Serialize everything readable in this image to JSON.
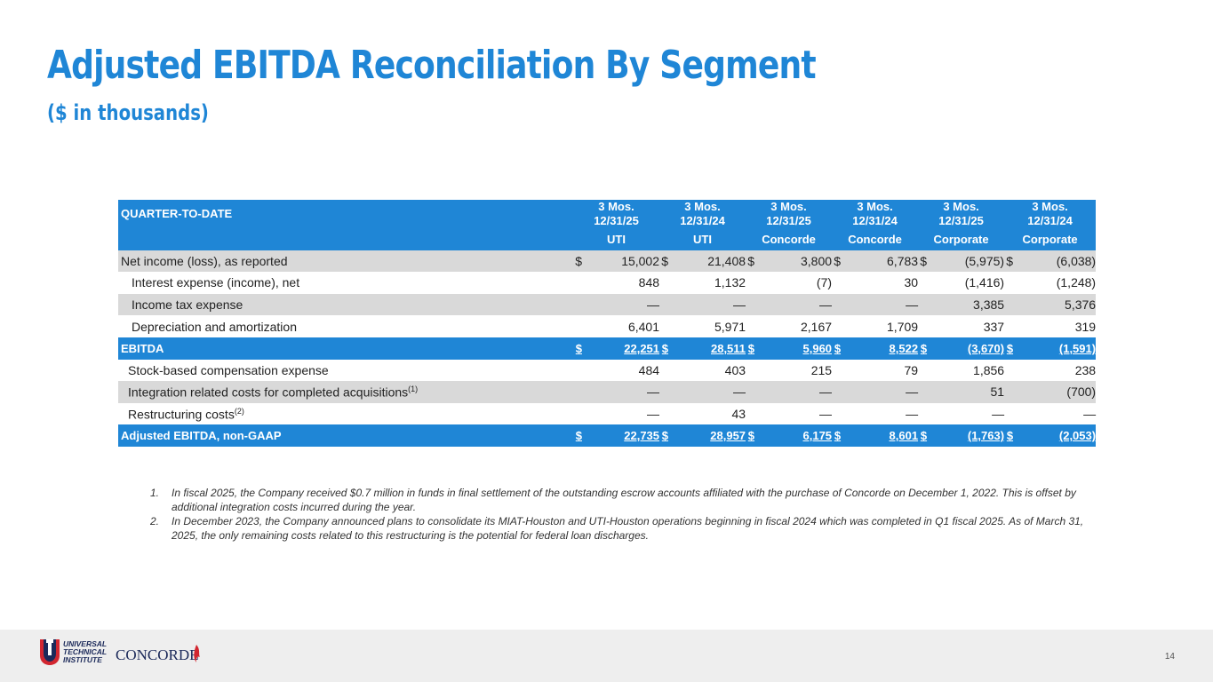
{
  "header": {
    "title": "Adjusted EBITDA Reconciliation By Segment",
    "subtitle": "($ in thousands)"
  },
  "table": {
    "corner_label": "QUARTER-TO-DATE",
    "columns": [
      {
        "period": "3 Mos.",
        "date": "12/31/25",
        "segment": "UTI"
      },
      {
        "period": "3 Mos.",
        "date": "12/31/24",
        "segment": "UTI"
      },
      {
        "period": "3 Mos.",
        "date": "12/31/25",
        "segment": "Concorde"
      },
      {
        "period": "3 Mos.",
        "date": "12/31/24",
        "segment": "Concorde"
      },
      {
        "period": "3 Mos.",
        "date": "12/31/25",
        "segment": "Corporate"
      },
      {
        "period": "3 Mos.",
        "date": "12/31/24",
        "segment": "Corporate"
      }
    ],
    "currency_symbol": "$",
    "rows": [
      {
        "label": "Net income (loss), as reported",
        "values": [
          "15,002",
          "21,408",
          "3,800",
          "6,783",
          "(5,975)",
          "(6,038)"
        ]
      },
      {
        "label": "Interest expense (income), net",
        "values": [
          "848",
          "1,132",
          "(7)",
          "30",
          "(1,416)",
          "(1,248)"
        ]
      },
      {
        "label": "Income tax expense",
        "values": [
          "—",
          "—",
          "—",
          "—",
          "3,385",
          "5,376"
        ]
      },
      {
        "label": "Depreciation and amortization",
        "values": [
          "6,401",
          "5,971",
          "2,167",
          "1,709",
          "337",
          "319"
        ]
      },
      {
        "label": "EBITDA",
        "values": [
          "22,251",
          "28,511",
          "5,960",
          "8,522",
          "(3,670)",
          "(1,591)"
        ]
      },
      {
        "label": "Stock-based compensation expense",
        "values": [
          "484",
          "403",
          "215",
          "79",
          "1,856",
          "238"
        ]
      },
      {
        "label": "Integration related costs for completed acquisitions",
        "sup": "(1)",
        "values": [
          "—",
          "—",
          "—",
          "—",
          "51",
          "(700)"
        ]
      },
      {
        "label": "Restructuring costs",
        "sup": "(2)",
        "values": [
          "—",
          "43",
          "—",
          "—",
          "—",
          "—"
        ]
      },
      {
        "label": "Adjusted EBITDA, non-GAAP",
        "values": [
          "22,735",
          "28,957",
          "6,175",
          "8,601",
          "(1,763)",
          "(2,053)"
        ]
      }
    ]
  },
  "footnotes": [
    {
      "num": "1.",
      "text": "In fiscal 2025, the Company received $0.7 million in funds in final settlement of the outstanding escrow accounts affiliated with the purchase of Concorde on December 1, 2022. This is offset by additional integration costs incurred during the year."
    },
    {
      "num": "2.",
      "text": "In December 2023, the Company announced plans to consolidate its MIAT-Houston and UTI-Houston operations beginning in fiscal 2024 which was completed in Q1 fiscal 2025. As of March 31, 2025, the only remaining costs related to this restructuring is the potential for federal loan discharges."
    }
  ],
  "footer": {
    "logos": [
      {
        "name": "Universal Technical Institute",
        "lines": [
          "UNIVERSAL",
          "TECHNICAL",
          "INSTITUTE"
        ],
        "mark": "UTI"
      },
      {
        "name": "Concorde",
        "text": "CONCORDE"
      }
    ],
    "page_number": "14"
  },
  "colors": {
    "accent": "#1f86d6",
    "row_gray": "#d9d9d9",
    "footer_bg": "#eeeeee",
    "logo_red": "#d22630",
    "logo_navy": "#1c2a5a"
  }
}
